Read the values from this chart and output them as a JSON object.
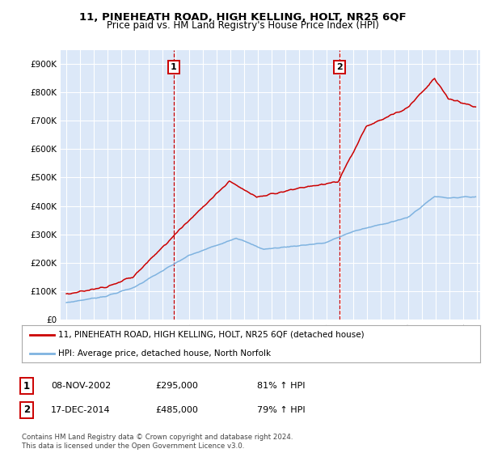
{
  "title": "11, PINEHEATH ROAD, HIGH KELLING, HOLT, NR25 6QF",
  "subtitle": "Price paid vs. HM Land Registry's House Price Index (HPI)",
  "background_color": "#ffffff",
  "plot_bg_color": "#dce8f8",
  "grid_color": "#ffffff",
  "house_color": "#cc0000",
  "hpi_color": "#7fb3e0",
  "transaction1_date": "2002-11-08",
  "transaction1_label": "08-NOV-2002",
  "transaction1_price": "£295,000",
  "transaction1_hpi": "81% ↑ HPI",
  "transaction2_date": "2014-12-17",
  "transaction2_label": "17-DEC-2014",
  "transaction2_price": "£485,000",
  "transaction2_hpi": "79% ↑ HPI",
  "legend_house": "11, PINEHEATH ROAD, HIGH KELLING, HOLT, NR25 6QF (detached house)",
  "legend_hpi": "HPI: Average price, detached house, North Norfolk",
  "footer": "Contains HM Land Registry data © Crown copyright and database right 2024.\nThis data is licensed under the Open Government Licence v3.0.",
  "ylim": [
    0,
    950000
  ],
  "yticks": [
    0,
    100000,
    200000,
    300000,
    400000,
    500000,
    600000,
    700000,
    800000,
    900000
  ],
  "ytick_labels": [
    "£0",
    "£100K",
    "£200K",
    "£300K",
    "£400K",
    "£500K",
    "£600K",
    "£700K",
    "£800K",
    "£900K"
  ]
}
